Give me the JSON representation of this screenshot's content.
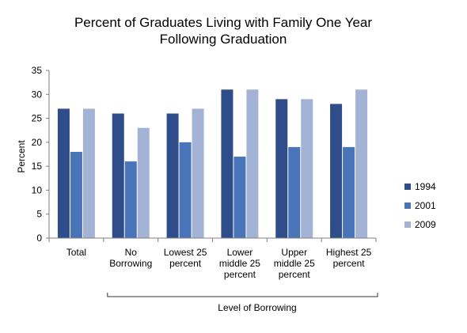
{
  "chart_data": {
    "type": "bar",
    "title_lines": [
      "Percent of Graduates Living with Family One Year",
      "Following Graduation"
    ],
    "ylabel": "Percent",
    "xlabel": "Level of Borrowing",
    "ylim": [
      0,
      35
    ],
    "yticks": [
      0,
      5,
      10,
      15,
      20,
      25,
      30,
      35
    ],
    "categories": [
      [
        "Total"
      ],
      [
        "No",
        "Borrowing"
      ],
      [
        "Lowest 25",
        "percent"
      ],
      [
        "Lower",
        "middle 25",
        "percent"
      ],
      [
        "Upper",
        "middle 25",
        "percent"
      ],
      [
        "Highest 25",
        "percent"
      ]
    ],
    "series": [
      {
        "name": "1994",
        "color": "#2F4D8A",
        "values": [
          27,
          26,
          26,
          31,
          29,
          28
        ]
      },
      {
        "name": "2001",
        "color": "#4A74B8",
        "values": [
          18,
          16,
          20,
          17,
          19,
          19
        ]
      },
      {
        "name": "2009",
        "color": "#A3B3D6",
        "values": [
          27,
          23,
          27,
          31,
          29,
          31
        ]
      }
    ],
    "grid": false,
    "legend_position": "right"
  }
}
